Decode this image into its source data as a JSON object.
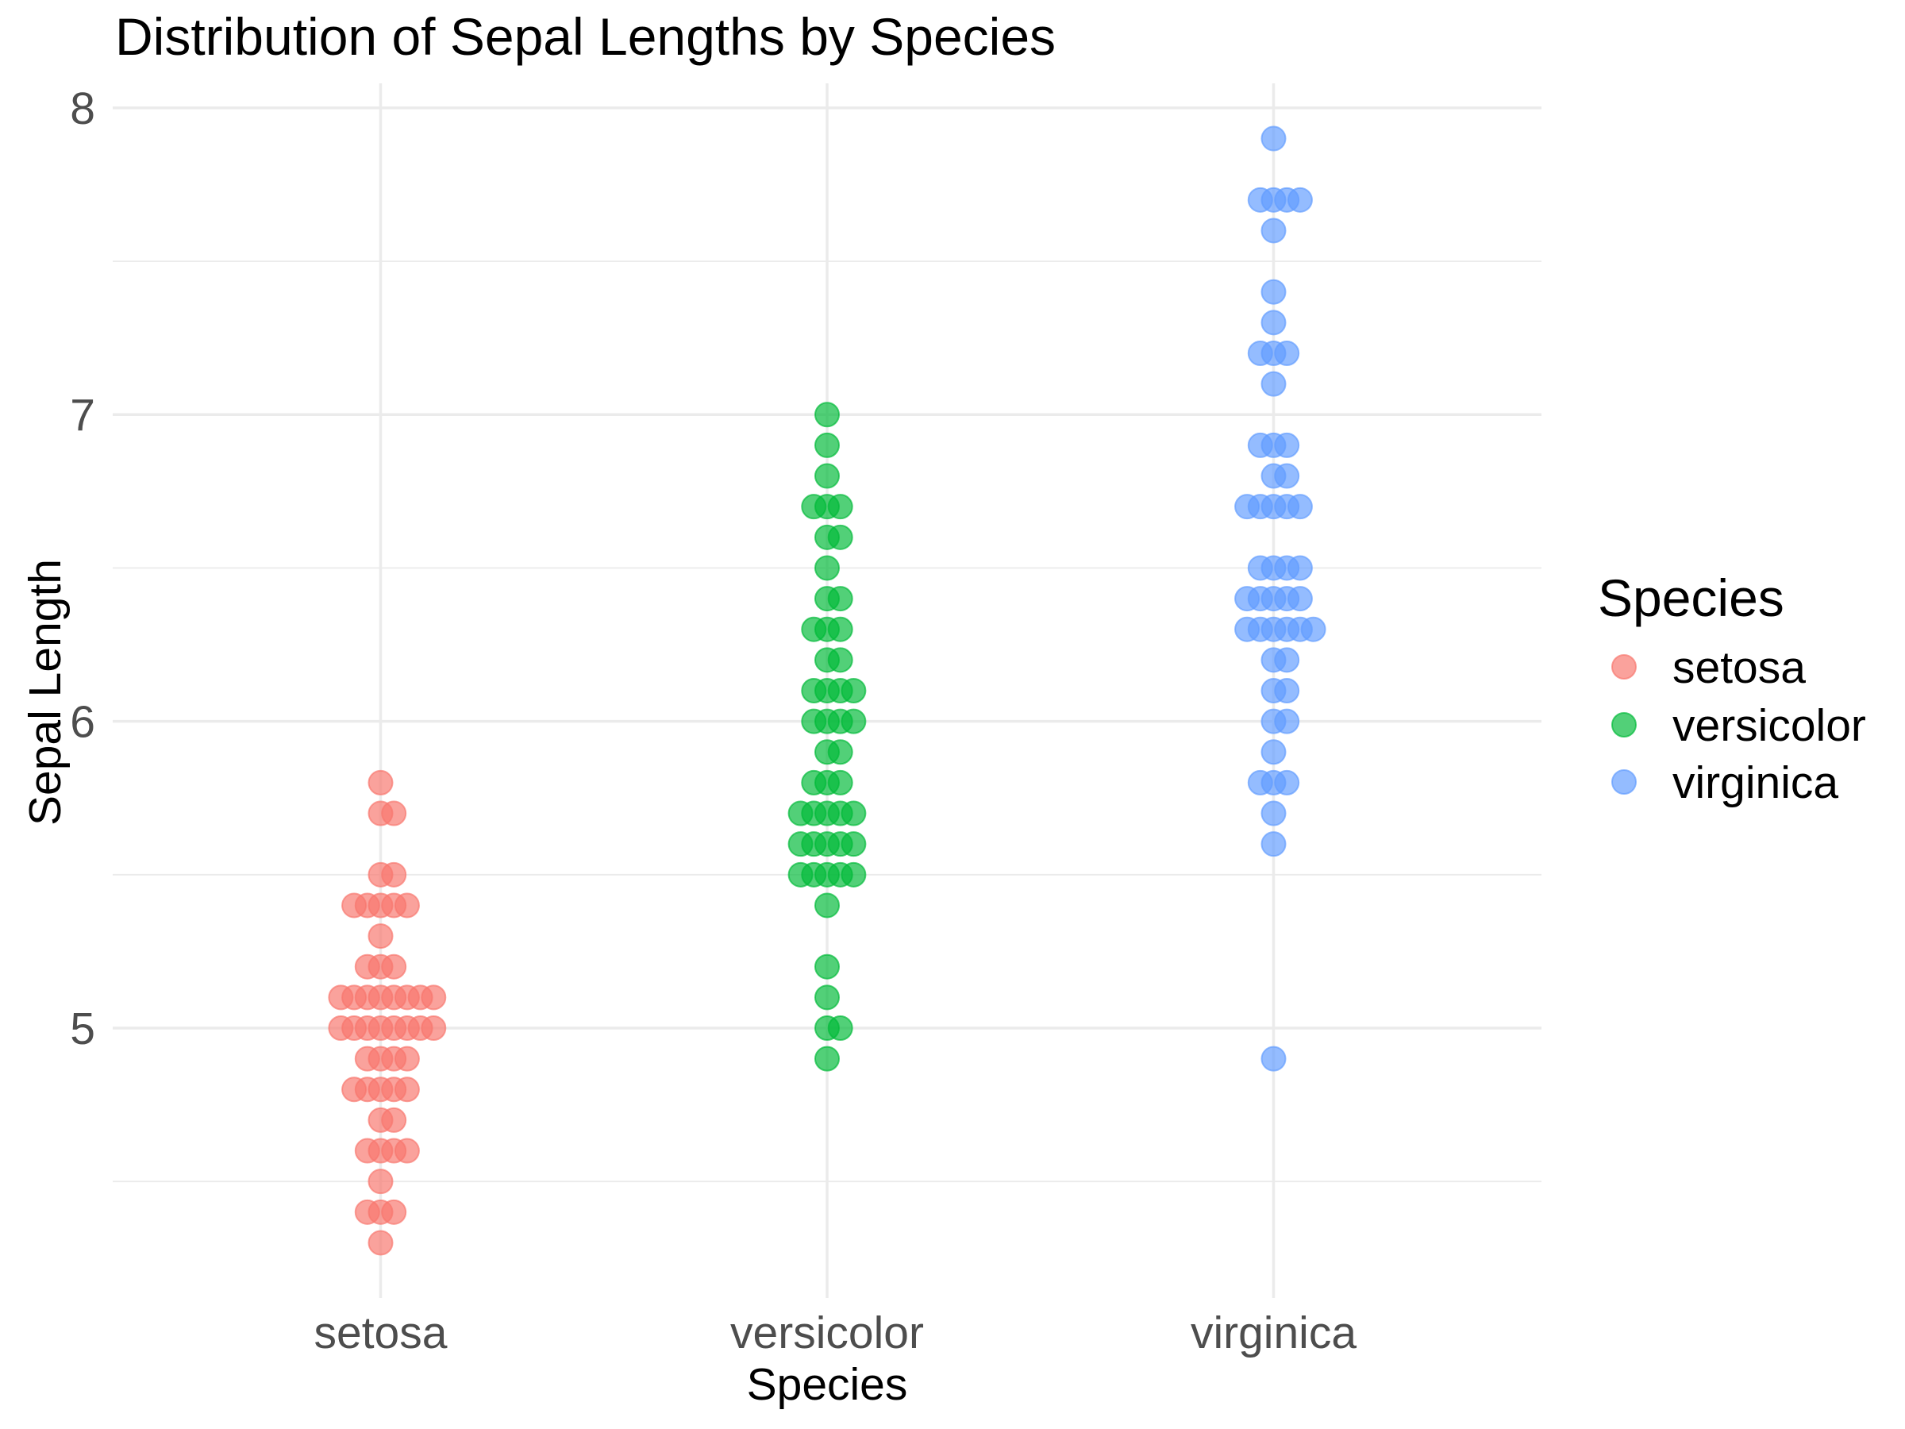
{
  "chart_data": {
    "type": "scatter",
    "subtype": "dotplot",
    "title": "Distribution of Sepal Lengths by Species",
    "xlabel": "Species",
    "ylabel": "Sepal Length",
    "categories": [
      "setosa",
      "versicolor",
      "virginica"
    ],
    "yticks": [
      5,
      6,
      7,
      8
    ],
    "ytick_labels": [
      "5",
      "6",
      "7",
      "8"
    ],
    "ylim": [
      4.12,
      8.08
    ],
    "grid": true,
    "legend": {
      "title": "Species",
      "placement": "right",
      "entries": [
        "setosa",
        "versicolor",
        "virginica"
      ]
    },
    "series": [
      {
        "name": "setosa",
        "color": "#F8766D",
        "points": [
          {
            "y": 4.3,
            "n": 1
          },
          {
            "y": 4.4,
            "n": 3
          },
          {
            "y": 4.5,
            "n": 1
          },
          {
            "y": 4.6,
            "n": 4
          },
          {
            "y": 4.7,
            "n": 2
          },
          {
            "y": 4.8,
            "n": 5
          },
          {
            "y": 4.9,
            "n": 4
          },
          {
            "y": 5.0,
            "n": 8
          },
          {
            "y": 5.1,
            "n": 8
          },
          {
            "y": 5.2,
            "n": 3
          },
          {
            "y": 5.3,
            "n": 1
          },
          {
            "y": 5.4,
            "n": 5
          },
          {
            "y": 5.5,
            "n": 2
          },
          {
            "y": 5.7,
            "n": 2
          },
          {
            "y": 5.8,
            "n": 1
          }
        ]
      },
      {
        "name": "versicolor",
        "color": "#00BA38",
        "points": [
          {
            "y": 4.9,
            "n": 1
          },
          {
            "y": 5.0,
            "n": 2
          },
          {
            "y": 5.1,
            "n": 1
          },
          {
            "y": 5.2,
            "n": 1
          },
          {
            "y": 5.4,
            "n": 1
          },
          {
            "y": 5.5,
            "n": 5
          },
          {
            "y": 5.6,
            "n": 5
          },
          {
            "y": 5.7,
            "n": 5
          },
          {
            "y": 5.8,
            "n": 3
          },
          {
            "y": 5.9,
            "n": 2
          },
          {
            "y": 6.0,
            "n": 4
          },
          {
            "y": 6.1,
            "n": 4
          },
          {
            "y": 6.2,
            "n": 2
          },
          {
            "y": 6.3,
            "n": 3
          },
          {
            "y": 6.4,
            "n": 2
          },
          {
            "y": 6.5,
            "n": 1
          },
          {
            "y": 6.6,
            "n": 2
          },
          {
            "y": 6.7,
            "n": 3
          },
          {
            "y": 6.8,
            "n": 1
          },
          {
            "y": 6.9,
            "n": 1
          },
          {
            "y": 7.0,
            "n": 1
          }
        ]
      },
      {
        "name": "virginica",
        "color": "#619CFF",
        "points": [
          {
            "y": 4.9,
            "n": 1
          },
          {
            "y": 5.6,
            "n": 1
          },
          {
            "y": 5.7,
            "n": 1
          },
          {
            "y": 5.8,
            "n": 3
          },
          {
            "y": 5.9,
            "n": 1
          },
          {
            "y": 6.0,
            "n": 2
          },
          {
            "y": 6.1,
            "n": 2
          },
          {
            "y": 6.2,
            "n": 2
          },
          {
            "y": 6.3,
            "n": 6
          },
          {
            "y": 6.4,
            "n": 5
          },
          {
            "y": 6.5,
            "n": 4
          },
          {
            "y": 6.7,
            "n": 5
          },
          {
            "y": 6.8,
            "n": 2
          },
          {
            "y": 6.9,
            "n": 3
          },
          {
            "y": 7.1,
            "n": 1
          },
          {
            "y": 7.2,
            "n": 3
          },
          {
            "y": 7.3,
            "n": 1
          },
          {
            "y": 7.4,
            "n": 1
          },
          {
            "y": 7.6,
            "n": 1
          },
          {
            "y": 7.7,
            "n": 4
          },
          {
            "y": 7.9,
            "n": 1
          }
        ]
      }
    ]
  }
}
